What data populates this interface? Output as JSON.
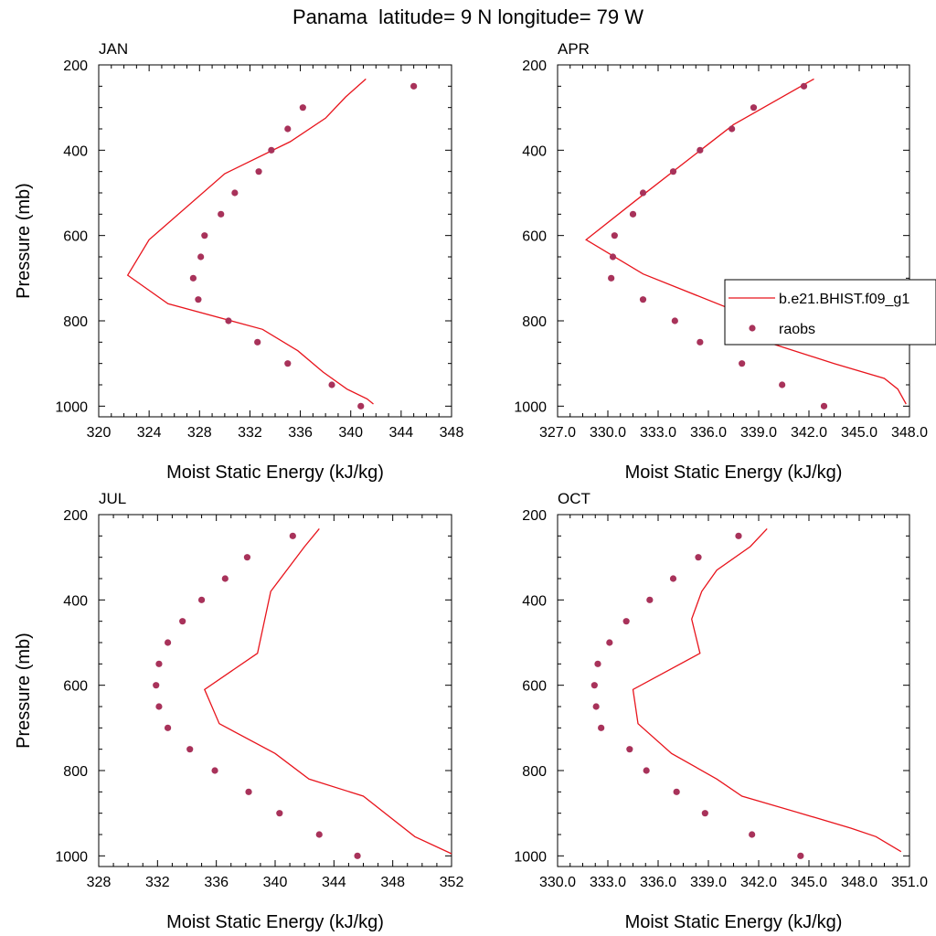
{
  "title": "Panama  latitude= 9 N longitude= 79 W",
  "colors": {
    "model": "#e8141c",
    "obs": "#a8325a",
    "axis": "#000000"
  },
  "chart_data": [
    {
      "type": "line",
      "panel_title": "JAN",
      "xlabel": "Moist Static Energy (kJ/kg)",
      "ylabel": "Pressure (mb)",
      "xlim": [
        320,
        348
      ],
      "ylim": [
        1025,
        200
      ],
      "xticks": [
        320,
        324,
        328,
        332,
        336,
        340,
        344,
        348
      ],
      "xtick_labels": [
        "320",
        "324",
        "328",
        "332",
        "336",
        "340",
        "344",
        "348"
      ],
      "yticks": [
        200,
        400,
        600,
        800,
        1000
      ],
      "series": [
        {
          "kind": "line",
          "x": [
            341.2,
            339.6,
            338.0,
            335.2,
            330.0,
            324.0,
            322.3,
            325.5,
            333.0,
            335.8,
            337.8,
            339.7,
            341.3,
            341.8
          ],
          "y": [
            233,
            275,
            325,
            380,
            455,
            610,
            693,
            760,
            820,
            870,
            920,
            960,
            983,
            995
          ]
        },
        {
          "kind": "scatter",
          "x": [
            345.0,
            336.2,
            335.0,
            333.7,
            332.7,
            330.8,
            329.7,
            328.4,
            328.1,
            327.5,
            327.9,
            330.3,
            332.6,
            335.0,
            338.5,
            340.8
          ],
          "y": [
            250,
            300,
            350,
            400,
            450,
            500,
            550,
            600,
            650,
            700,
            750,
            800,
            850,
            900,
            950,
            1000
          ]
        }
      ]
    },
    {
      "type": "line",
      "panel_title": "APR",
      "xlabel": "Moist Static Energy (kJ/kg)",
      "ylabel": "",
      "xlim": [
        327,
        348
      ],
      "ylim": [
        1025,
        200
      ],
      "xticks": [
        327,
        330,
        333,
        336,
        339,
        342,
        345,
        348
      ],
      "xtick_labels": [
        "327.0",
        "330.0",
        "333.0",
        "336.0",
        "339.0",
        "342.0",
        "345.0",
        "348.0"
      ],
      "yticks": [
        200,
        400,
        600,
        800,
        1000
      ],
      "series": [
        {
          "kind": "line",
          "x": [
            342.3,
            337.5,
            331.6,
            328.7,
            332.1,
            337.5,
            339.5,
            343.5,
            346.5,
            347.3,
            347.8
          ],
          "y": [
            233,
            340,
            520,
            610,
            690,
            775,
            850,
            900,
            935,
            960,
            995
          ]
        },
        {
          "kind": "scatter",
          "x": [
            341.7,
            338.7,
            337.4,
            335.5,
            333.9,
            332.1,
            331.5,
            330.4,
            330.3,
            330.2,
            332.1,
            334.0,
            335.5,
            338.0,
            340.4,
            342.9
          ],
          "y": [
            250,
            300,
            350,
            400,
            450,
            500,
            550,
            600,
            650,
            700,
            750,
            800,
            850,
            900,
            950,
            1000
          ]
        }
      ],
      "legend": {
        "placement": "right",
        "entries": [
          {
            "label": "b.e21.BHIST.f09_g1",
            "kind": "line"
          },
          {
            "label": "raobs",
            "kind": "scatter"
          }
        ]
      }
    },
    {
      "type": "line",
      "panel_title": "JUL",
      "xlabel": "Moist Static Energy (kJ/kg)",
      "ylabel": "Pressure (mb)",
      "xlim": [
        328,
        352
      ],
      "ylim": [
        1025,
        200
      ],
      "xticks": [
        328,
        332,
        336,
        340,
        344,
        348,
        352
      ],
      "xtick_labels": [
        "328",
        "332",
        "336",
        "340",
        "344",
        "348",
        "352"
      ],
      "yticks": [
        200,
        400,
        600,
        800,
        1000
      ],
      "series": [
        {
          "kind": "line",
          "x": [
            343.0,
            342.0,
            339.7,
            338.8,
            335.2,
            336.2,
            340.0,
            342.3,
            346.0,
            349.5,
            352.0
          ],
          "y": [
            233,
            275,
            380,
            525,
            610,
            690,
            760,
            820,
            860,
            955,
            995
          ]
        },
        {
          "kind": "scatter",
          "x": [
            341.2,
            338.1,
            336.6,
            335.0,
            333.7,
            332.7,
            332.1,
            331.9,
            332.1,
            332.7,
            334.2,
            335.9,
            338.2,
            340.3,
            343.0,
            345.6
          ],
          "y": [
            250,
            300,
            350,
            400,
            450,
            500,
            550,
            600,
            650,
            700,
            750,
            800,
            850,
            900,
            950,
            1000
          ]
        }
      ]
    },
    {
      "type": "line",
      "panel_title": "OCT",
      "xlabel": "Moist Static Energy (kJ/kg)",
      "ylabel": "",
      "xlim": [
        330,
        351
      ],
      "ylim": [
        1025,
        200
      ],
      "xticks": [
        330,
        333,
        336,
        339,
        342,
        345,
        348,
        351
      ],
      "xtick_labels": [
        "330.0",
        "333.0",
        "336.0",
        "339.0",
        "342.0",
        "345.0",
        "348.0",
        "351.0"
      ],
      "yticks": [
        200,
        400,
        600,
        800,
        1000
      ],
      "series": [
        {
          "kind": "line",
          "x": [
            342.5,
            341.5,
            339.5,
            338.6,
            338.0,
            338.5,
            334.5,
            334.8,
            336.8,
            339.5,
            341.0,
            344.5,
            347.5,
            349.0,
            350.5
          ],
          "y": [
            233,
            275,
            330,
            380,
            445,
            525,
            610,
            690,
            760,
            820,
            860,
            900,
            935,
            955,
            990
          ]
        },
        {
          "kind": "scatter",
          "x": [
            340.8,
            338.4,
            336.9,
            335.5,
            334.1,
            333.1,
            332.4,
            332.2,
            332.3,
            332.6,
            334.3,
            335.3,
            337.1,
            338.8,
            341.6,
            344.5
          ],
          "y": [
            250,
            300,
            350,
            400,
            450,
            500,
            550,
            600,
            650,
            700,
            750,
            800,
            850,
            900,
            950,
            1000
          ]
        }
      ]
    }
  ]
}
